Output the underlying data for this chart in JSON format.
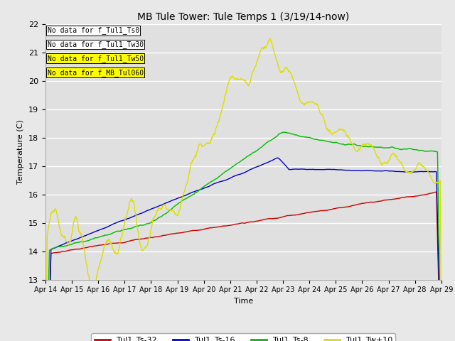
{
  "title": "MB Tule Tower: Tule Temps 1 (3/19/14-now)",
  "ylabel": "Temperature (C)",
  "xlabel": "Time",
  "ylim": [
    13.0,
    22.0
  ],
  "yticks": [
    13.0,
    14.0,
    15.0,
    16.0,
    17.0,
    18.0,
    19.0,
    20.0,
    21.0,
    22.0
  ],
  "xtick_labels": [
    "Apr 14",
    "Apr 15",
    "Apr 16",
    "Apr 17",
    "Apr 18",
    "Apr 19",
    "Apr 20",
    "Apr 21",
    "Apr 22",
    "Apr 23",
    "Apr 24",
    "Apr 25",
    "Apr 26",
    "Apr 27",
    "Apr 28",
    "Apr 29"
  ],
  "colors": {
    "red": "#cc0000",
    "blue": "#0000cc",
    "green": "#00bb00",
    "yellow": "#dddd00"
  },
  "legend_labels": [
    "Tul1_Ts-32",
    "Tul1_Ts-16",
    "Tul1_Ts-8",
    "Tul1_Tw+10"
  ],
  "no_data_texts": [
    "No data for f_Tul1_Ts0",
    "No data for f_Tul1_Tw30",
    "No data for f_Tul1_Tw50",
    "No data for f_MB_Tul060"
  ],
  "fig_facecolor": "#e8e8e8",
  "plot_bg_color": "#e0e0e0"
}
